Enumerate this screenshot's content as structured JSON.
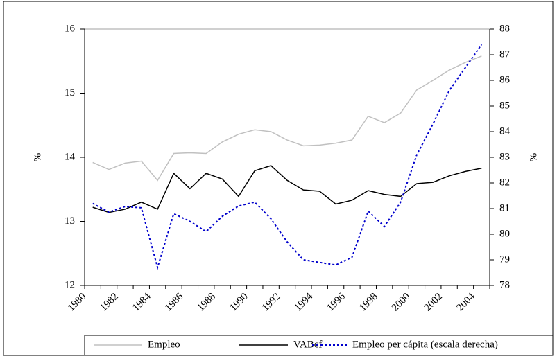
{
  "chart_data": {
    "type": "line",
    "categories": [
      "1980",
      null,
      "1982",
      null,
      "1984",
      null,
      "1986",
      null,
      "1988",
      null,
      "1990",
      null,
      "1992",
      null,
      "1994",
      null,
      "1996",
      null,
      "1998",
      null,
      "2000",
      null,
      "2002",
      null,
      "2004"
    ],
    "y_label": "%",
    "y2_label": "%",
    "ylim": [
      12,
      16
    ],
    "yticks": [
      12,
      13,
      14,
      15,
      16
    ],
    "y2lim": [
      78,
      88
    ],
    "y2ticks": [
      78,
      79,
      80,
      81,
      82,
      83,
      84,
      85,
      86,
      87,
      88
    ],
    "series": [
      {
        "name": "Empleo",
        "color": "#c0c0c0",
        "dash": "solid",
        "values": [
          13.92,
          13.81,
          13.91,
          13.94,
          13.64,
          14.06,
          14.07,
          14.06,
          14.24,
          14.36,
          14.43,
          14.4,
          14.27,
          14.18,
          14.19,
          14.22,
          14.27,
          14.64,
          14.54,
          14.69,
          15.05,
          15.2,
          15.36,
          15.48,
          15.58
        ]
      },
      {
        "name": "VABcf",
        "color": "#000000",
        "dash": "solid",
        "values": [
          13.22,
          13.14,
          13.19,
          13.3,
          13.19,
          13.75,
          13.51,
          13.75,
          13.66,
          13.39,
          13.79,
          13.87,
          13.64,
          13.49,
          13.47,
          13.27,
          13.33,
          13.48,
          13.42,
          13.39,
          13.59,
          13.61,
          13.71,
          13.78,
          13.83
        ]
      },
      {
        "name": "Empleo per cápita (escala derecha)",
        "color": "#0000cc",
        "dash": "dotted",
        "axis": "y2",
        "values": [
          81.2,
          80.86,
          81.08,
          81.03,
          78.7,
          80.8,
          80.5,
          80.1,
          80.7,
          81.1,
          81.25,
          80.6,
          79.7,
          79.0,
          78.9,
          78.8,
          79.1,
          80.9,
          80.3,
          81.25,
          83.1,
          84.3,
          85.6,
          86.5,
          87.4
        ]
      }
    ]
  }
}
